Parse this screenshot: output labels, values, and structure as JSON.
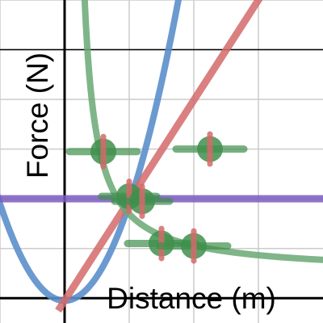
{
  "chart_data": {
    "type": "scatter",
    "title": "",
    "xlabel": "Distance (m)",
    "ylabel": "Force (N)",
    "xlim": [
      -1,
      4
    ],
    "ylim": [
      -0.1,
      1.2
    ],
    "x_gridlines": [
      -1,
      0,
      1,
      2,
      3
    ],
    "y_gridlines": [
      0,
      0.2,
      0.4,
      0.6,
      0.8,
      1.0,
      1.2
    ],
    "grid": true,
    "legend": "none",
    "series": [
      {
        "kind": "curve",
        "color": "#5b8fcb",
        "function": "parabola",
        "points": [
          [
            -1,
            0.38
          ],
          [
            -0.5,
            0.08
          ],
          [
            0,
            -0.01
          ],
          [
            0.5,
            0.08
          ],
          [
            1,
            0.38
          ],
          [
            1.5,
            0.84
          ],
          [
            1.8,
            1.21
          ]
        ]
      },
      {
        "kind": "line",
        "color": "#d46a6a",
        "points": [
          [
            0,
            -0.01
          ],
          [
            3,
            1.2
          ]
        ]
      },
      {
        "kind": "hline",
        "color": "#7a5bbf",
        "y": 0.4
      },
      {
        "kind": "curve",
        "color": "#68a873",
        "function": "decay",
        "points": [
          [
            0.3,
            1.2
          ],
          [
            0.5,
            0.86
          ],
          [
            1,
            0.45
          ],
          [
            1.5,
            0.23
          ],
          [
            2,
            0.17
          ],
          [
            3,
            0.11
          ],
          [
            4,
            0.1
          ]
        ]
      },
      {
        "kind": "points-with-error",
        "color": "#3f8f4c",
        "error_color": "#d46a6a",
        "points": [
          {
            "x": 0.6,
            "y": 0.59,
            "xerr": 1.05,
            "yerr": 0.06
          },
          {
            "x": 2.25,
            "y": 0.6,
            "xerr": 1.05,
            "yerr": 0.06
          },
          {
            "x": 1.0,
            "y": 0.41,
            "xerr": 0.85,
            "yerr": 0.06
          },
          {
            "x": 1.2,
            "y": 0.39,
            "xerr": 0.85,
            "yerr": 0.06
          },
          {
            "x": 1.5,
            "y": 0.22,
            "xerr": 1.05,
            "yerr": 0.06
          },
          {
            "x": 2.0,
            "y": 0.21,
            "xerr": 1.05,
            "yerr": 0.06
          }
        ]
      }
    ]
  }
}
